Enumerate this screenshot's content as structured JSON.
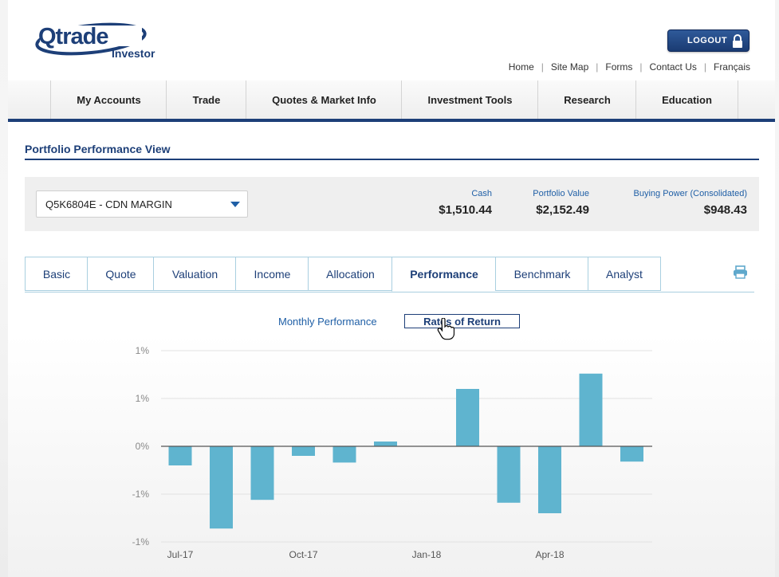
{
  "header": {
    "logo_text": "Qtrade",
    "logo_sub": "Investor",
    "logout_label": "LOGOUT",
    "links": [
      "Home",
      "Site Map",
      "Forms",
      "Contact Us",
      "Français"
    ]
  },
  "nav": {
    "items": [
      "My Accounts",
      "Trade",
      "Quotes & Market Info",
      "Investment Tools",
      "Research",
      "Education"
    ]
  },
  "section": {
    "title": "Portfolio Performance View"
  },
  "account": {
    "selected": "Q5K6804E - CDN MARGIN",
    "cash_label": "Cash",
    "cash_value": "$1,510.44",
    "portfolio_label": "Portfolio Value",
    "portfolio_value": "$2,152.49",
    "buying_label": "Buying Power (Consolidated)",
    "buying_value": "$948.43"
  },
  "tabs": {
    "items": [
      "Basic",
      "Quote",
      "Valuation",
      "Income",
      "Allocation",
      "Performance",
      "Benchmark",
      "Analyst"
    ],
    "active": "Performance"
  },
  "subtabs": {
    "monthly": "Monthly Performance",
    "ror": "Rates of Return"
  },
  "chart_data": {
    "type": "bar",
    "categories": [
      "Jul-17",
      "Aug-17",
      "Sep-17",
      "Oct-17",
      "Nov-17",
      "Dec-17",
      "Jan-18",
      "Feb-18",
      "Mar-18",
      "Apr-18",
      "May-18",
      "Jun-18"
    ],
    "values": [
      -0.2,
      -0.86,
      -0.56,
      -0.1,
      -0.17,
      0.05,
      0.0,
      0.6,
      -0.59,
      -0.7,
      0.76,
      -0.16
    ],
    "ytick_labels": [
      "1%",
      "1%",
      "0%",
      "-1%",
      "-1%"
    ],
    "ytick_values": [
      1.0,
      0.5,
      0.0,
      -0.5,
      -1.0
    ],
    "xtick_labels": [
      "Jul-17",
      "Oct-17",
      "Jan-18",
      "Apr-18"
    ],
    "xtick_indices": [
      0,
      3,
      6,
      9
    ],
    "ylim": [
      -1.0,
      1.0
    ],
    "grid": true,
    "bar_color": "#5fb4cf"
  },
  "colors": {
    "brand_navy": "#1d3f78",
    "link_blue": "#1f5fa6",
    "bar": "#5fb4cf"
  }
}
